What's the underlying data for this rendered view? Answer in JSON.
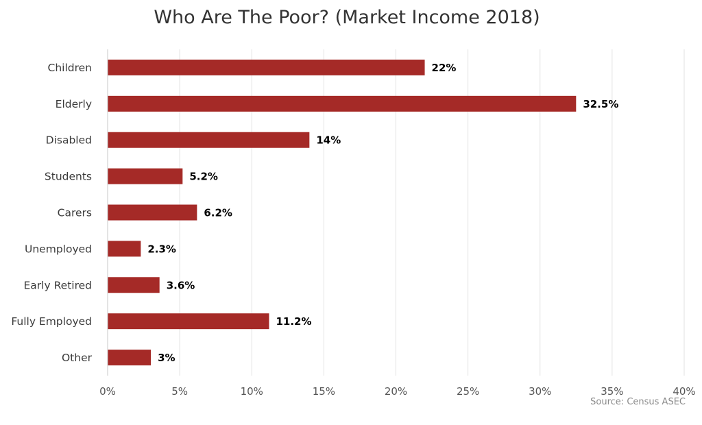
{
  "chart_data": {
    "type": "bar",
    "orientation": "horizontal",
    "title": "Who Are The Poor? (Market Income 2018)",
    "categories": [
      "Children",
      "Elderly",
      "Disabled",
      "Students",
      "Carers",
      "Unemployed",
      "Early Retired",
      "Fully Employed",
      "Other"
    ],
    "values": [
      22,
      32.5,
      14,
      5.2,
      6.2,
      2.3,
      3.6,
      11.2,
      3
    ],
    "data_labels": [
      "22%",
      "32.5%",
      "14%",
      "5.2%",
      "6.2%",
      "2.3%",
      "3.6%",
      "11.2%",
      "3%"
    ],
    "x_ticks": [
      0,
      5,
      10,
      15,
      20,
      25,
      30,
      35,
      40
    ],
    "x_tick_labels": [
      "0%",
      "5%",
      "10%",
      "15%",
      "20%",
      "25%",
      "30%",
      "35%",
      "40%"
    ],
    "xlim": [
      0,
      40
    ],
    "grid": true,
    "bar_color": "#a52a27",
    "xlabel": "",
    "ylabel": "",
    "source": "Source: Census ASEC"
  }
}
